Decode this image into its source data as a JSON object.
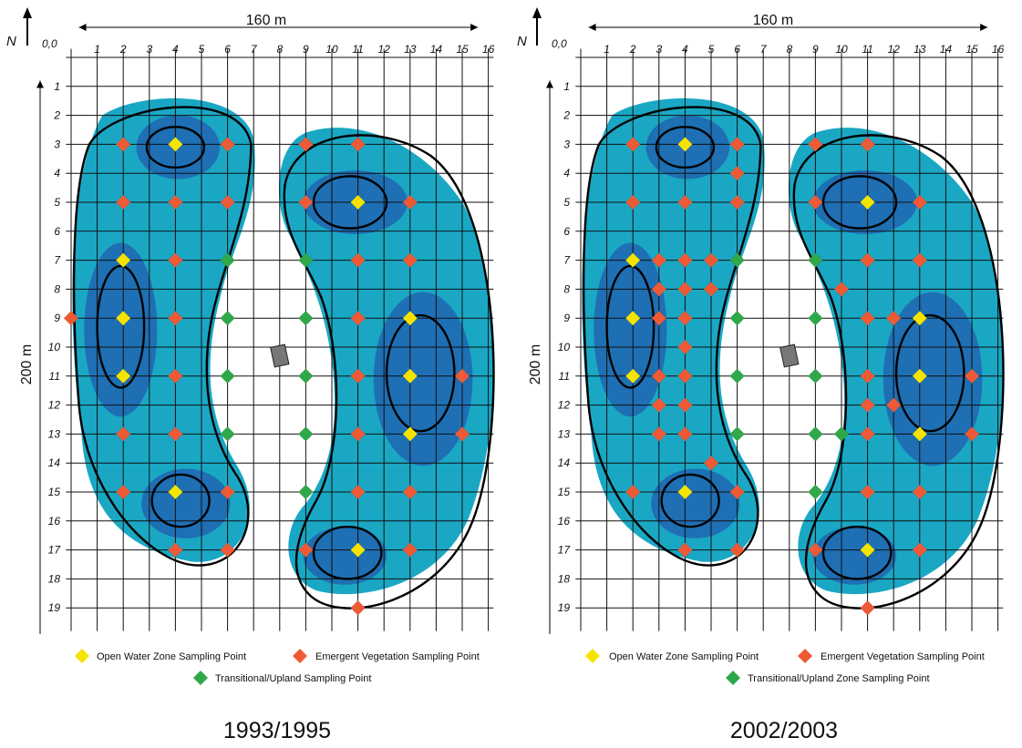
{
  "panels": [
    {
      "id": "1993",
      "caption": "1993/1995",
      "width_label": "160 m",
      "height_label": "200 m",
      "north_label": "N",
      "origin_label": "0,0",
      "x_ticks": [
        "1",
        "2",
        "3",
        "4",
        "5",
        "6",
        "7",
        "8",
        "9",
        "10",
        "11",
        "12",
        "13",
        "14",
        "15",
        "16"
      ],
      "y_ticks": [
        "1",
        "2",
        "3",
        "4",
        "5",
        "6",
        "7",
        "8",
        "9",
        "10",
        "11",
        "12",
        "13",
        "14",
        "15",
        "16",
        "17",
        "18",
        "19"
      ],
      "legend": {
        "open_water": "Open Water Zone Sampling Point",
        "emergent": "Emergent Vegetation Sampling Point",
        "transitional": "Transitional/Upland Sampling Point"
      },
      "points": {
        "open_water": [
          [
            4,
            3
          ],
          [
            2,
            7
          ],
          [
            2,
            9
          ],
          [
            2,
            11
          ],
          [
            4,
            15
          ],
          [
            11,
            5
          ],
          [
            13,
            9
          ],
          [
            13,
            11
          ],
          [
            13,
            13
          ],
          [
            11,
            17
          ]
        ],
        "emergent": [
          [
            2,
            3
          ],
          [
            6,
            3
          ],
          [
            2,
            5
          ],
          [
            4,
            5
          ],
          [
            6,
            5
          ],
          [
            4,
            7
          ],
          [
            0,
            9
          ],
          [
            4,
            9
          ],
          [
            4,
            11
          ],
          [
            2,
            13
          ],
          [
            4,
            13
          ],
          [
            2,
            15
          ],
          [
            6,
            15
          ],
          [
            4,
            17
          ],
          [
            6,
            17
          ],
          [
            9,
            3
          ],
          [
            11,
            3
          ],
          [
            9,
            5
          ],
          [
            13,
            5
          ],
          [
            11,
            7
          ],
          [
            13,
            7
          ],
          [
            11,
            9
          ],
          [
            11,
            11
          ],
          [
            15,
            11
          ],
          [
            11,
            13
          ],
          [
            15,
            13
          ],
          [
            11,
            15
          ],
          [
            13,
            15
          ],
          [
            9,
            17
          ],
          [
            13,
            17
          ],
          [
            11,
            19
          ]
        ],
        "transitional": [
          [
            6,
            7
          ],
          [
            6,
            9
          ],
          [
            6,
            11
          ],
          [
            6,
            13
          ],
          [
            9,
            7
          ],
          [
            9,
            9
          ],
          [
            9,
            11
          ],
          [
            9,
            13
          ],
          [
            9,
            15
          ]
        ]
      }
    },
    {
      "id": "2002",
      "caption": "2002/2003",
      "width_label": "160 m",
      "height_label": "200 m",
      "north_label": "N",
      "origin_label": "0,0",
      "x_ticks": [
        "1",
        "2",
        "3",
        "4",
        "5",
        "6",
        "7",
        "8",
        "9",
        "10",
        "11",
        "12",
        "13",
        "14",
        "15",
        "16"
      ],
      "y_ticks": [
        "1",
        "2",
        "3",
        "4",
        "5",
        "6",
        "7",
        "8",
        "9",
        "10",
        "11",
        "12",
        "13",
        "14",
        "15",
        "16",
        "17",
        "18",
        "19"
      ],
      "legend": {
        "open_water": "Open Water Zone Sampling Point",
        "emergent": "Emergent Vegetation Sampling Point",
        "transitional": "Transitional/Upland Zone Sampling Point"
      },
      "points": {
        "open_water": [
          [
            4,
            3
          ],
          [
            2,
            7
          ],
          [
            2,
            9
          ],
          [
            2,
            11
          ],
          [
            4,
            15
          ],
          [
            11,
            5
          ],
          [
            13,
            9
          ],
          [
            13,
            11
          ],
          [
            13,
            13
          ],
          [
            11,
            17
          ]
        ],
        "emergent": [
          [
            2,
            3
          ],
          [
            6,
            3
          ],
          [
            6,
            4
          ],
          [
            2,
            5
          ],
          [
            4,
            5
          ],
          [
            6,
            5
          ],
          [
            3,
            7
          ],
          [
            4,
            7
          ],
          [
            5,
            7
          ],
          [
            3,
            8
          ],
          [
            4,
            8
          ],
          [
            5,
            8
          ],
          [
            3,
            9
          ],
          [
            4,
            9
          ],
          [
            4,
            10
          ],
          [
            3,
            11
          ],
          [
            4,
            11
          ],
          [
            3,
            12
          ],
          [
            4,
            12
          ],
          [
            3,
            13
          ],
          [
            4,
            13
          ],
          [
            5,
            14
          ],
          [
            2,
            15
          ],
          [
            6,
            15
          ],
          [
            4,
            17
          ],
          [
            6,
            17
          ],
          [
            9,
            3
          ],
          [
            11,
            3
          ],
          [
            9,
            5
          ],
          [
            13,
            5
          ],
          [
            11,
            7
          ],
          [
            13,
            7
          ],
          [
            10,
            8
          ],
          [
            11,
            9
          ],
          [
            12,
            9
          ],
          [
            11,
            11
          ],
          [
            15,
            11
          ],
          [
            11,
            12
          ],
          [
            12,
            12
          ],
          [
            11,
            13
          ],
          [
            15,
            13
          ],
          [
            11,
            15
          ],
          [
            13,
            15
          ],
          [
            9,
            17
          ],
          [
            13,
            17
          ],
          [
            11,
            19
          ]
        ],
        "transitional": [
          [
            6,
            7
          ],
          [
            6,
            9
          ],
          [
            6,
            11
          ],
          [
            6,
            13
          ],
          [
            9,
            7
          ],
          [
            9,
            9
          ],
          [
            9,
            11
          ],
          [
            9,
            13
          ],
          [
            10,
            13
          ],
          [
            9,
            15
          ]
        ]
      }
    }
  ],
  "colors": {
    "open_water": "#f5e400",
    "emergent": "#ee5a35",
    "transitional": "#2fa84a",
    "light_water": "#1aa7c4",
    "deep_water": "#1e6fb4",
    "grid": "#111111"
  }
}
